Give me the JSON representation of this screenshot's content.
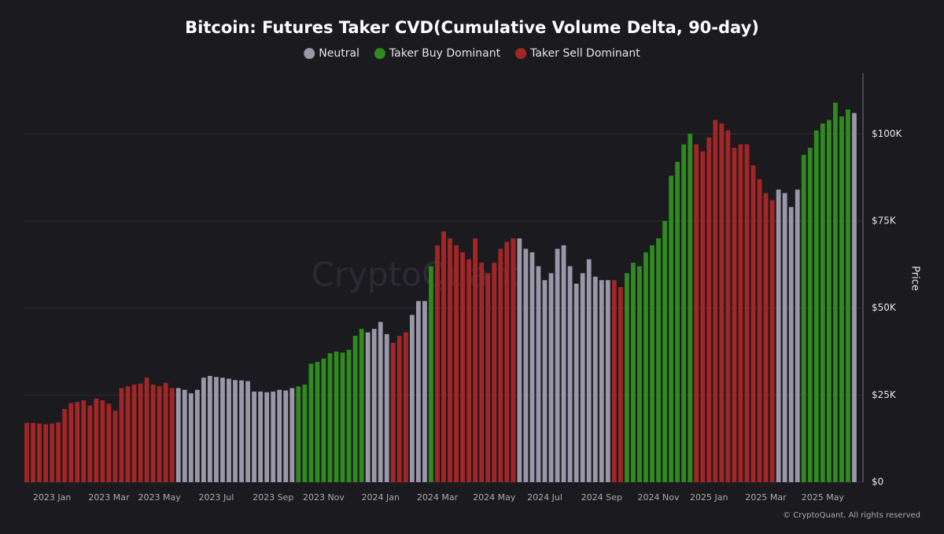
{
  "chart_data": {
    "type": "bar",
    "title": "Bitcoin: Futures Taker CVD(Cumulative Volume Delta, 90-day)",
    "y_label": "Price",
    "watermark": "CryptoQuant",
    "footer": "© CryptoQuant. All rights reserved",
    "ylim": [
      0,
      117000
    ],
    "yticks": [
      {
        "value": 0,
        "label": "$0"
      },
      {
        "value": 25000,
        "label": "$25K"
      },
      {
        "value": 50000,
        "label": "$50K"
      },
      {
        "value": 75000,
        "label": "$75K"
      },
      {
        "value": 100000,
        "label": "$100K"
      }
    ],
    "grid": true,
    "legend": "top",
    "categories": [
      null,
      null,
      null,
      null,
      "2023 Jan",
      null,
      null,
      null,
      null,
      null,
      null,
      null,
      null,
      "2023 Mar",
      null,
      null,
      null,
      null,
      null,
      null,
      null,
      "2023 May",
      null,
      null,
      null,
      null,
      null,
      null,
      null,
      null,
      "2023 Jul",
      null,
      null,
      null,
      null,
      null,
      null,
      null,
      null,
      "2023 Sep",
      null,
      null,
      null,
      null,
      null,
      null,
      null,
      "2023 Nov",
      null,
      null,
      null,
      null,
      null,
      null,
      null,
      null,
      "2024 Jan",
      null,
      null,
      null,
      null,
      null,
      null,
      null,
      null,
      "2024 Mar",
      null,
      null,
      null,
      null,
      null,
      null,
      null,
      null,
      "2024 May",
      null,
      null,
      null,
      null,
      null,
      null,
      null,
      "2024 Jul",
      null,
      null,
      null,
      null,
      null,
      null,
      null,
      null,
      "2024 Sep",
      null,
      null,
      null,
      null,
      null,
      null,
      null,
      null,
      "2024 Nov",
      null,
      null,
      null,
      null,
      null,
      null,
      null,
      "2025 Jan",
      null,
      null,
      null,
      null,
      null,
      null,
      null,
      null,
      "2025 Mar",
      null,
      null,
      null,
      null,
      null,
      null,
      null,
      null,
      "2025 May",
      null,
      null,
      null,
      null,
      null
    ],
    "series": [
      {
        "name": "Neutral",
        "color": "#9a97a8",
        "values": [
          null,
          null,
          null,
          null,
          null,
          null,
          null,
          null,
          null,
          null,
          null,
          null,
          null,
          null,
          null,
          null,
          null,
          null,
          null,
          null,
          null,
          null,
          null,
          null,
          27000,
          26500,
          25500,
          26500,
          30000,
          30500,
          30200,
          30000,
          29700,
          29300,
          29200,
          29000,
          26000,
          26000,
          25800,
          26000,
          26500,
          26300,
          27000,
          null,
          null,
          null,
          null,
          null,
          null,
          null,
          null,
          null,
          null,
          null,
          43000,
          44000,
          46000,
          42500,
          null,
          null,
          null,
          48000,
          52000,
          52000,
          null,
          null,
          null,
          null,
          null,
          null,
          null,
          null,
          null,
          null,
          null,
          null,
          null,
          null,
          70000,
          67000,
          66000,
          62000,
          58000,
          60000,
          67000,
          68000,
          62000,
          57000,
          60000,
          64000,
          59000,
          58000,
          58000,
          null,
          null,
          null,
          null,
          null,
          null,
          null,
          null,
          null,
          null,
          null,
          null,
          null,
          null,
          null,
          null,
          null,
          null,
          null,
          null,
          null,
          null,
          null,
          null,
          null,
          null,
          84000,
          83000,
          79000,
          84000,
          null,
          null,
          null,
          null,
          null,
          null,
          null,
          null,
          106000
        ]
      },
      {
        "name": "Taker Buy Dominant",
        "color": "#2f8a1f",
        "values": [
          null,
          null,
          null,
          null,
          null,
          null,
          null,
          null,
          null,
          null,
          null,
          null,
          null,
          null,
          null,
          null,
          null,
          null,
          null,
          null,
          null,
          null,
          null,
          null,
          null,
          null,
          null,
          null,
          null,
          null,
          null,
          null,
          null,
          null,
          null,
          null,
          null,
          null,
          null,
          null,
          null,
          null,
          null,
          27500,
          28000,
          34000,
          34500,
          35500,
          37000,
          37500,
          37200,
          38000,
          42000,
          44000,
          null,
          null,
          null,
          null,
          null,
          null,
          null,
          null,
          null,
          null,
          62000,
          null,
          null,
          null,
          null,
          null,
          null,
          null,
          null,
          null,
          null,
          null,
          null,
          null,
          null,
          null,
          null,
          null,
          null,
          null,
          null,
          null,
          null,
          null,
          null,
          null,
          null,
          null,
          null,
          null,
          null,
          60000,
          63000,
          62000,
          66000,
          68000,
          70000,
          75000,
          88000,
          92000,
          97000,
          100000,
          null,
          null,
          null,
          null,
          null,
          null,
          null,
          null,
          null,
          null,
          null,
          null,
          null,
          null,
          null,
          null,
          null,
          94000,
          96000,
          101000,
          103000,
          104000,
          109000,
          105000,
          107000,
          null
        ]
      },
      {
        "name": "Taker Sell Dominant",
        "color": "#a32626",
        "values": [
          17000,
          17000,
          16800,
          16600,
          16800,
          17200,
          21000,
          22700,
          23000,
          23500,
          22000,
          24000,
          23500,
          22500,
          20500,
          27000,
          27500,
          28000,
          28300,
          30000,
          28000,
          27500,
          28500,
          27000,
          null,
          null,
          null,
          null,
          null,
          null,
          null,
          null,
          null,
          null,
          null,
          null,
          null,
          null,
          null,
          null,
          null,
          null,
          null,
          null,
          null,
          null,
          null,
          null,
          null,
          null,
          null,
          null,
          null,
          null,
          null,
          null,
          null,
          null,
          40000,
          42000,
          43000,
          null,
          null,
          null,
          null,
          68000,
          72000,
          70000,
          68000,
          66000,
          64000,
          70000,
          63000,
          60000,
          63000,
          67000,
          69000,
          70000,
          null,
          null,
          null,
          null,
          null,
          null,
          null,
          null,
          null,
          null,
          null,
          null,
          null,
          null,
          null,
          58000,
          56000,
          null,
          null,
          null,
          null,
          null,
          null,
          null,
          null,
          null,
          null,
          null,
          97000,
          95000,
          99000,
          104000,
          103000,
          101000,
          96000,
          97000,
          97000,
          91000,
          87000,
          83000,
          81000,
          null,
          null,
          null,
          null,
          null,
          null,
          null,
          null,
          null,
          null,
          null,
          null,
          null
        ]
      }
    ]
  }
}
